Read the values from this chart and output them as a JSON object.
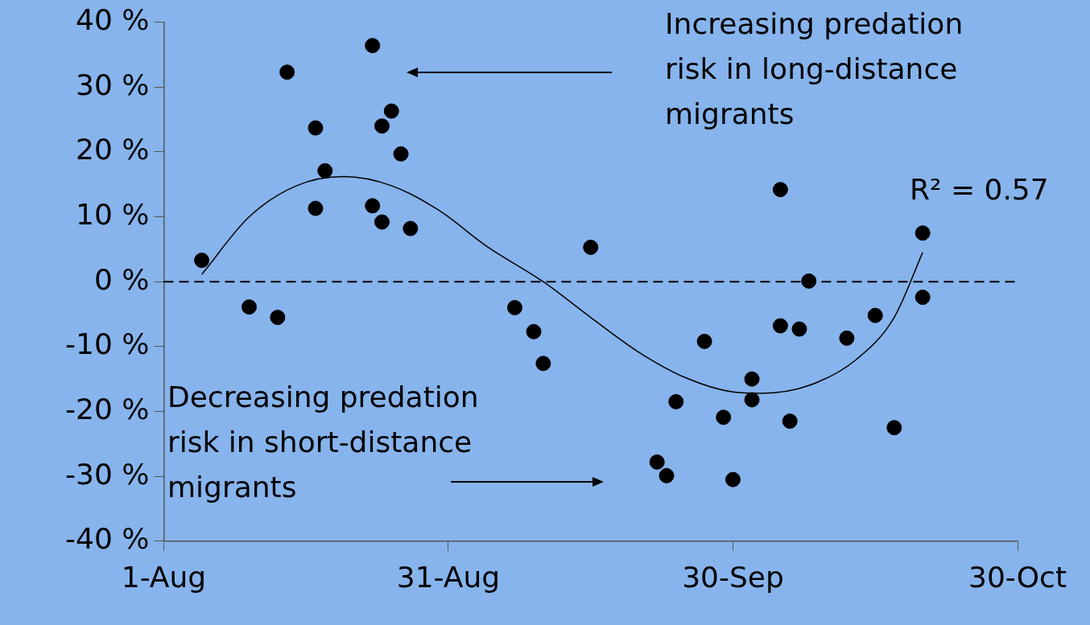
{
  "chart_data": {
    "type": "scatter",
    "xlim": [
      "--08-01",
      "--10-30"
    ],
    "xticks": [
      {
        "value": "--08-01",
        "label": "1-Aug"
      },
      {
        "value": "--08-31",
        "label": "31-Aug"
      },
      {
        "value": "--09-30",
        "label": "30-Sep"
      },
      {
        "value": "--10-30",
        "label": "30-Oct"
      }
    ],
    "ylim": [
      -40,
      40
    ],
    "yticks": [
      {
        "value": -40,
        "label": "-40 %"
      },
      {
        "value": -30,
        "label": "-30 %"
      },
      {
        "value": -20,
        "label": "-20 %"
      },
      {
        "value": -10,
        "label": "-10 %"
      },
      {
        "value": 0,
        "label": "0 %"
      },
      {
        "value": 10,
        "label": "10 %"
      },
      {
        "value": 20,
        "label": "20 %"
      },
      {
        "value": 30,
        "label": "30 %"
      },
      {
        "value": 40,
        "label": "40 %"
      }
    ],
    "grid": false,
    "legend": false,
    "series": [
      {
        "type": "scatter",
        "color": "#000000",
        "marker": "circle",
        "x": [
          "--08-05",
          "--08-10",
          "--08-13",
          "--08-14",
          "--08-17",
          "--08-18",
          "--08-17",
          "--08-23",
          "--08-25",
          "--08-24",
          "--08-26",
          "--08-23",
          "--08-24",
          "--08-27",
          "--09-07",
          "--09-09",
          "--09-10",
          "--09-15",
          "--09-22",
          "--09-23",
          "--09-24",
          "--09-27",
          "--09-29",
          "--09-30",
          "--10-02",
          "--10-02",
          "--10-05",
          "--10-05",
          "--10-06",
          "--10-07",
          "--10-08",
          "--10-12",
          "--10-15",
          "--10-17",
          "--10-20",
          "--10-20"
        ],
        "values": [
          3.3,
          -3.9,
          -5.5,
          32.3,
          23.7,
          17.1,
          11.3,
          36.4,
          26.3,
          24.0,
          19.7,
          11.7,
          9.2,
          8.2,
          -4.0,
          -7.7,
          -12.6,
          5.3,
          -27.8,
          -29.9,
          -18.5,
          -9.2,
          -20.9,
          -30.5,
          -18.2,
          -15.0,
          14.2,
          -6.8,
          -21.5,
          -7.3,
          0.1,
          -8.7,
          -5.2,
          -22.5,
          7.5,
          -2.4
        ]
      },
      {
        "type": "line",
        "color": "#000000",
        "marker": "none",
        "x": [
          "--08-05",
          "--08-10",
          "--08-15",
          "--08-20",
          "--08-25",
          "--08-30",
          "--09-04",
          "--09-10",
          "--09-15",
          "--09-20",
          "--09-25",
          "--09-30",
          "--10-03",
          "--10-08",
          "--10-13",
          "--10-17",
          "--10-20"
        ],
        "values": [
          1.1,
          10,
          14.8,
          16.2,
          14.8,
          11,
          5.5,
          0,
          -5.5,
          -10.8,
          -14.8,
          -17,
          -17.2,
          -16,
          -12,
          -5.5,
          4.5
        ]
      }
    ],
    "ref_lines": [
      {
        "axis": "y",
        "value": 0,
        "color": "#000000",
        "line_style": "dashed"
      }
    ],
    "annotations": [
      "Increasing predation risk in long-distance migrants",
      "Decreasing predation risk in short-distance migrants",
      "R² = 0.57"
    ]
  }
}
